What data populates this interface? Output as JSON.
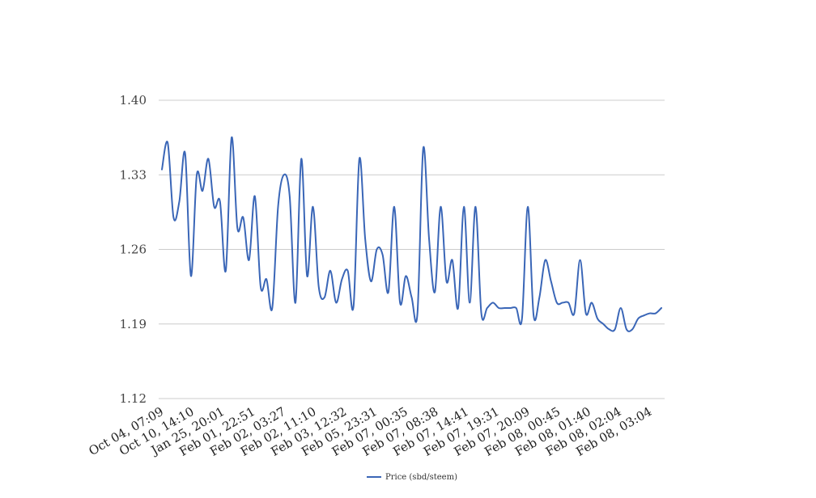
{
  "chart_data": {
    "type": "line",
    "title": "",
    "xlabel": "",
    "ylabel": "",
    "ylim": [
      1.12,
      1.4
    ],
    "yticks": [
      "1.40",
      "1.33",
      "1.26",
      "1.19",
      "1.12"
    ],
    "ytick_values": [
      1.4,
      1.33,
      1.26,
      1.19,
      1.12
    ],
    "xticks": [
      "Oct 04, 07:09",
      "Oct 10, 14:10",
      "Jan 25, 20:01",
      "Feb 01, 22:51",
      "Feb 02, 03:27",
      "Feb 02, 11:10",
      "Feb 03, 12:32",
      "Feb 05, 23:31",
      "Feb 07, 00:35",
      "Feb 07, 08:38",
      "Feb 07, 14:41",
      "Feb 07, 19:31",
      "Feb 07, 20:09",
      "Feb 08, 00:45",
      "Feb 08, 01:40",
      "Feb 08, 02:04",
      "Feb 08, 03:04"
    ],
    "grid": true,
    "legend_position": "bottom",
    "series": [
      {
        "name": "Price (sbd/steem)",
        "color": "#3a66b7",
        "values": [
          1.335,
          1.36,
          1.29,
          1.305,
          1.35,
          1.235,
          1.33,
          1.315,
          1.345,
          1.3,
          1.305,
          1.24,
          1.365,
          1.28,
          1.29,
          1.25,
          1.31,
          1.225,
          1.232,
          1.205,
          1.3,
          1.33,
          1.31,
          1.21,
          1.345,
          1.235,
          1.3,
          1.225,
          1.215,
          1.24,
          1.21,
          1.232,
          1.24,
          1.207,
          1.345,
          1.27,
          1.23,
          1.26,
          1.255,
          1.22,
          1.3,
          1.21,
          1.235,
          1.215,
          1.2,
          1.355,
          1.27,
          1.22,
          1.3,
          1.23,
          1.25,
          1.205,
          1.3,
          1.21,
          1.3,
          1.2,
          1.205,
          1.21,
          1.205,
          1.205,
          1.205,
          1.205,
          1.195,
          1.3,
          1.198,
          1.215,
          1.25,
          1.23,
          1.21,
          1.21,
          1.21,
          1.2,
          1.25,
          1.2,
          1.21,
          1.195,
          1.19,
          1.185,
          1.185,
          1.205,
          1.185,
          1.185,
          1.195,
          1.198,
          1.2,
          1.2,
          1.205
        ]
      }
    ]
  }
}
